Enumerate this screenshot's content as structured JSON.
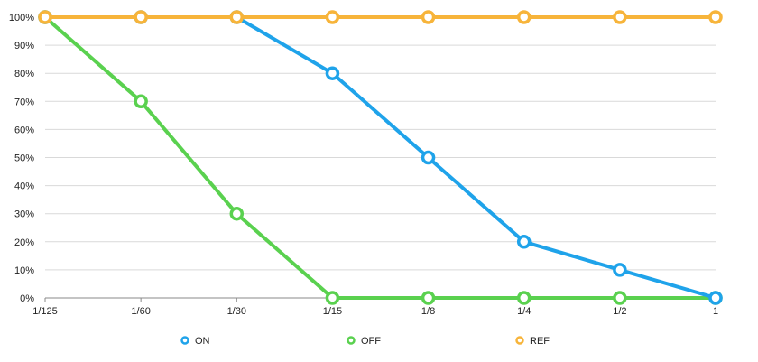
{
  "chart_data": {
    "type": "line",
    "categories": [
      "1/125",
      "1/60",
      "1/30",
      "1/15",
      "1/8",
      "1/4",
      "1/2",
      "1"
    ],
    "series": [
      {
        "name": "ON",
        "color": "#1fa3ea",
        "values": [
          100,
          100,
          100,
          80,
          50,
          20,
          10,
          0
        ]
      },
      {
        "name": "OFF",
        "color": "#5ad14f",
        "values": [
          100,
          70,
          30,
          0,
          0,
          0,
          0,
          0
        ]
      },
      {
        "name": "REF",
        "color": "#f7b43a",
        "values": [
          100,
          100,
          100,
          100,
          100,
          100,
          100,
          100
        ]
      }
    ],
    "y_ticks": [
      "0%",
      "10%",
      "20%",
      "30%",
      "40%",
      "50%",
      "60%",
      "70%",
      "80%",
      "90%",
      "100%"
    ],
    "ylim": [
      0,
      100
    ],
    "grid": true,
    "legend_position": "bottom",
    "title": "",
    "xlabel": "",
    "ylabel": ""
  }
}
